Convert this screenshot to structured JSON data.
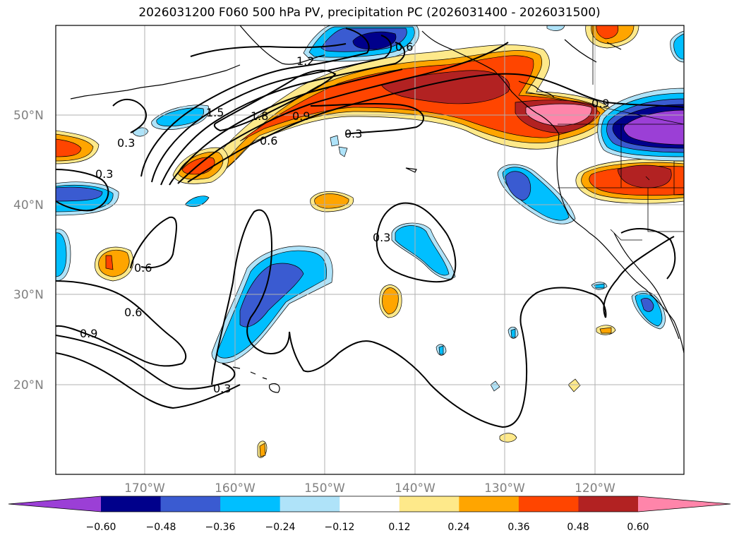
{
  "title": "2026031200 F060 500 hPa PV, precipitation PC (2026031400 - 2026031500)",
  "lat_labels": [
    "50°N",
    "40°N",
    "30°N",
    "20°N"
  ],
  "lon_labels": [
    "170°W",
    "160°W",
    "150°W",
    "140°W",
    "130°W",
    "120°W"
  ],
  "contour_labels": [
    "1.2",
    "0.6",
    "1.5",
    "1.8",
    "0.9",
    "0.6",
    "0.3",
    "0.3",
    "0.3",
    "0.9",
    "0.3",
    "0.6",
    "0.6",
    "0.9",
    "0.3"
  ],
  "colorbar": {
    "ticks": [
      "−0.60",
      "−0.48",
      "−0.36",
      "−0.24",
      "−0.12",
      "0.12",
      "0.24",
      "0.36",
      "0.48",
      "0.60"
    ],
    "colors": [
      "#9b3fd6",
      "#00008b",
      "#3a5bd1",
      "#00bfff",
      "#afe3f9",
      "#ffffff",
      "#fee98a",
      "#ffa500",
      "#ff4500",
      "#b22222",
      "#ff85aa"
    ]
  }
}
